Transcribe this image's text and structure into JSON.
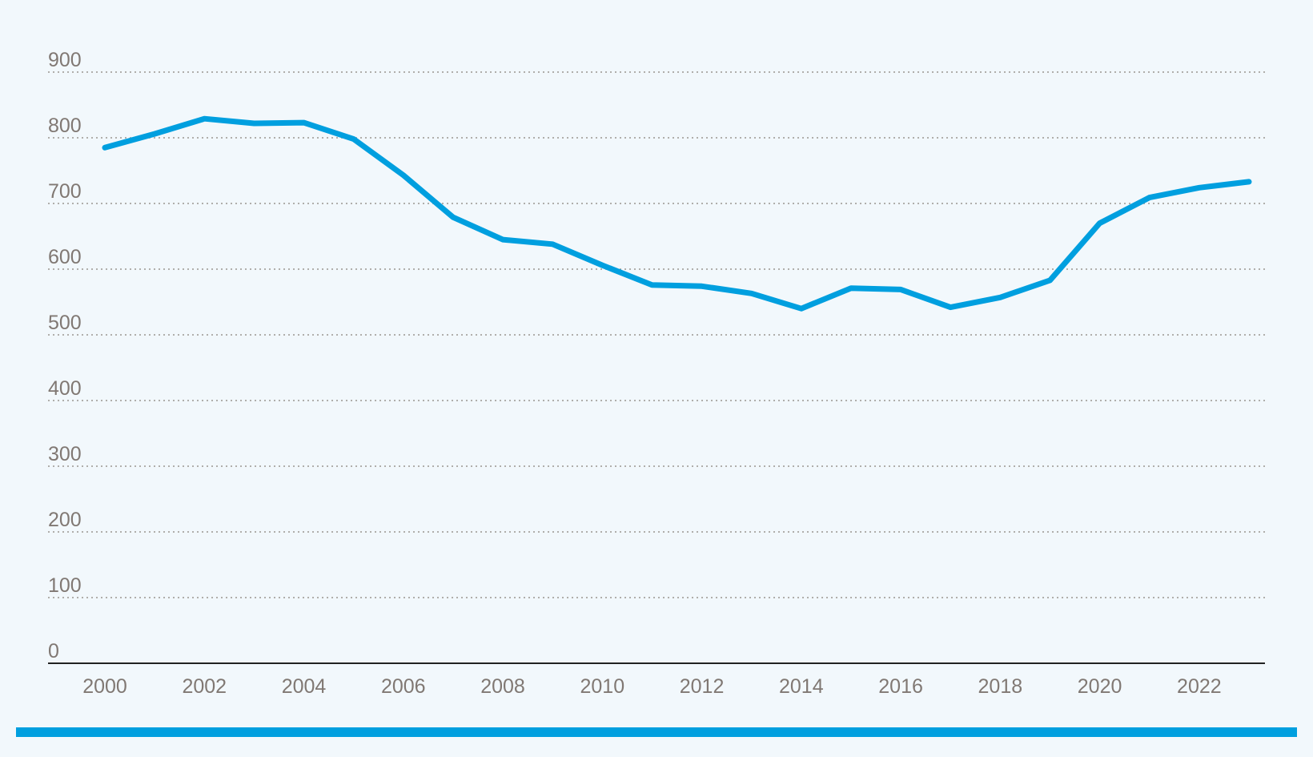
{
  "colors": {
    "background": "#f2f8fc",
    "line": "#009fdf",
    "grid": "#9a9590",
    "tick_text": "#807873",
    "axis": "#222222",
    "bottom_bar": "#009fdf"
  },
  "chart_data": {
    "type": "line",
    "title": "",
    "xlabel": "",
    "ylabel": "",
    "ylim": [
      0,
      900
    ],
    "xlim": [
      2000,
      2023
    ],
    "grid": true,
    "legend": "none",
    "y_ticks": [
      0,
      100,
      200,
      300,
      400,
      500,
      600,
      700,
      800,
      900
    ],
    "x_ticks": [
      2000,
      2002,
      2004,
      2006,
      2008,
      2010,
      2012,
      2014,
      2016,
      2018,
      2020,
      2022
    ],
    "x": [
      2000,
      2001,
      2002,
      2003,
      2004,
      2005,
      2006,
      2007,
      2008,
      2009,
      2010,
      2011,
      2012,
      2013,
      2014,
      2015,
      2016,
      2017,
      2018,
      2019,
      2020,
      2021,
      2022,
      2023
    ],
    "series": [
      {
        "values": [
          785,
          806,
          829,
          822,
          823,
          798,
          743,
          679,
          645,
          638,
          606,
          576,
          574,
          563,
          540,
          571,
          569,
          542,
          557,
          583,
          670,
          709,
          724,
          733
        ]
      }
    ]
  }
}
